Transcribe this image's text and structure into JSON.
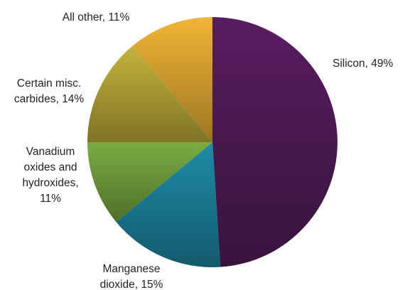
{
  "chart_data": {
    "type": "pie",
    "title": "",
    "slices": [
      {
        "name": "Silicon",
        "value": 49,
        "color": "#4e1a55",
        "label_lines": [
          "Silicon, 49%"
        ]
      },
      {
        "name": "Manganese dioxide",
        "value": 15,
        "color": "#1b7d96",
        "label_lines": [
          "Manganese",
          "dioxide, 15%"
        ]
      },
      {
        "name": "Vanadium oxides and hydroxides",
        "value": 11,
        "color": "#6e9a3b",
        "label_lines": [
          "Vanadium",
          "oxides and",
          "hydroxides,",
          "11%"
        ]
      },
      {
        "name": "Certain misc. carbides",
        "value": 14,
        "color": "#b0a035",
        "label_lines": [
          "Certain misc.",
          "carbides, 14%"
        ]
      },
      {
        "name": "All other",
        "value": 11,
        "color": "#d8a230",
        "label_lines": [
          "All other, 11%"
        ]
      }
    ],
    "start_angle": "12 o'clock",
    "direction": "clockwise",
    "legend": "none"
  }
}
